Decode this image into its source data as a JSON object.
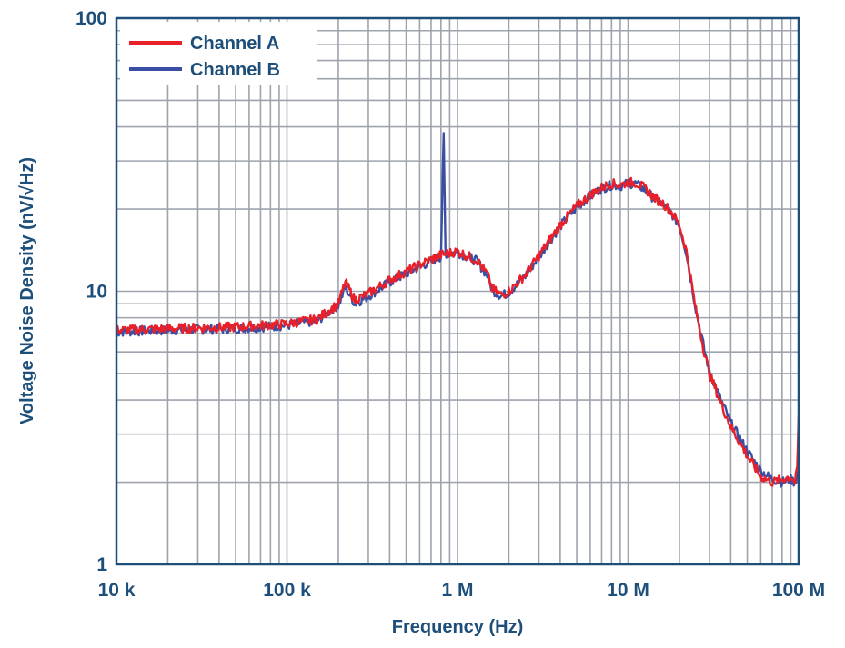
{
  "chart_data": {
    "type": "line",
    "title": "",
    "xlabel": "Frequency (Hz)",
    "ylabel": "Voltage Noise Density (nV/√Hz)",
    "x_scale": "log",
    "y_scale": "log",
    "xlim": [
      10000,
      100000000
    ],
    "ylim": [
      1,
      100
    ],
    "grid": true,
    "legend_position": "top-left",
    "x_ticks": [
      {
        "value": 10000,
        "label": "10 k"
      },
      {
        "value": 100000,
        "label": "100 k"
      },
      {
        "value": 1000000,
        "label": "1 M"
      },
      {
        "value": 10000000,
        "label": "10 M"
      },
      {
        "value": 100000000,
        "label": "100 M"
      }
    ],
    "y_ticks": [
      {
        "value": 1,
        "label": "1"
      },
      {
        "value": 10,
        "label": "10"
      },
      {
        "value": 100,
        "label": "100"
      }
    ],
    "series": [
      {
        "name": "Channel A",
        "color": "#e8202a",
        "x": [
          10000,
          20000,
          50000,
          100000,
          150000,
          200000,
          220000,
          250000,
          300000,
          400000,
          600000,
          800000,
          1000000,
          1300000,
          1500000,
          1600000,
          1800000,
          2000000,
          2500000,
          3000000,
          4000000,
          5000000,
          6000000,
          7000000,
          8000000,
          9000000,
          10000000,
          11000000,
          12000000,
          13000000,
          14000000,
          15000000,
          16000000,
          18000000,
          20000000,
          22000000,
          25000000,
          28000000,
          30000000,
          35000000,
          40000000,
          50000000,
          60000000,
          70000000,
          80000000,
          90000000,
          95000000,
          98000000,
          100000000
        ],
        "y": [
          7.2,
          7.3,
          7.4,
          7.6,
          7.9,
          9.0,
          10.8,
          9.3,
          9.8,
          11.0,
          12.5,
          13.6,
          14.0,
          13.0,
          11.5,
          10.2,
          9.7,
          10.0,
          11.5,
          13.5,
          17.5,
          20.5,
          22.5,
          24.0,
          24.8,
          24.5,
          25.0,
          25.0,
          24.3,
          23.3,
          22.3,
          21.5,
          21.0,
          19.5,
          17.5,
          14.0,
          8.5,
          6.0,
          5.0,
          3.9,
          3.2,
          2.5,
          2.1,
          2.0,
          2.05,
          2.1,
          2.0,
          2.2,
          3.5
        ]
      },
      {
        "name": "Channel B",
        "color": "#3a4fa3",
        "x": [
          10000,
          20000,
          50000,
          100000,
          150000,
          200000,
          220000,
          250000,
          300000,
          400000,
          600000,
          800000,
          830000,
          850000,
          870000,
          1000000,
          1300000,
          1500000,
          1600000,
          1800000,
          2000000,
          2500000,
          3000000,
          4000000,
          5000000,
          6000000,
          7000000,
          8000000,
          9000000,
          10000000,
          11000000,
          12000000,
          13000000,
          14000000,
          15000000,
          16000000,
          18000000,
          20000000,
          22000000,
          25000000,
          28000000,
          30000000,
          35000000,
          40000000,
          50000000,
          60000000,
          70000000,
          80000000,
          90000000,
          95000000,
          98000000,
          100000000
        ],
        "y": [
          7.1,
          7.2,
          7.3,
          7.5,
          7.8,
          8.9,
          10.3,
          9.0,
          9.6,
          10.8,
          12.3,
          13.4,
          37.0,
          13.8,
          13.7,
          13.9,
          12.9,
          11.4,
          10.1,
          9.6,
          9.9,
          11.4,
          13.4,
          17.3,
          20.3,
          22.3,
          23.8,
          24.5,
          24.3,
          24.8,
          24.8,
          24.0,
          23.0,
          22.0,
          21.3,
          20.8,
          19.3,
          17.3,
          13.8,
          8.6,
          6.1,
          5.1,
          4.0,
          3.3,
          2.6,
          2.2,
          2.05,
          2.0,
          2.05,
          2.0,
          2.1,
          2.2
        ]
      }
    ]
  }
}
